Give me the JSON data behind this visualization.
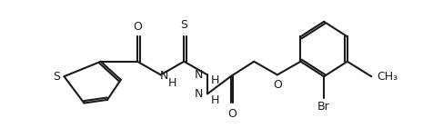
{
  "bg_color": "#ffffff",
  "line_color": "#1a1a1a",
  "line_width": 1.5,
  "font_size": 9,
  "figsize": [
    4.87,
    1.41
  ],
  "dpi": 100,
  "xlim": [
    0.55,
    2.78
  ],
  "ylim": [
    0.15,
    0.92
  ]
}
